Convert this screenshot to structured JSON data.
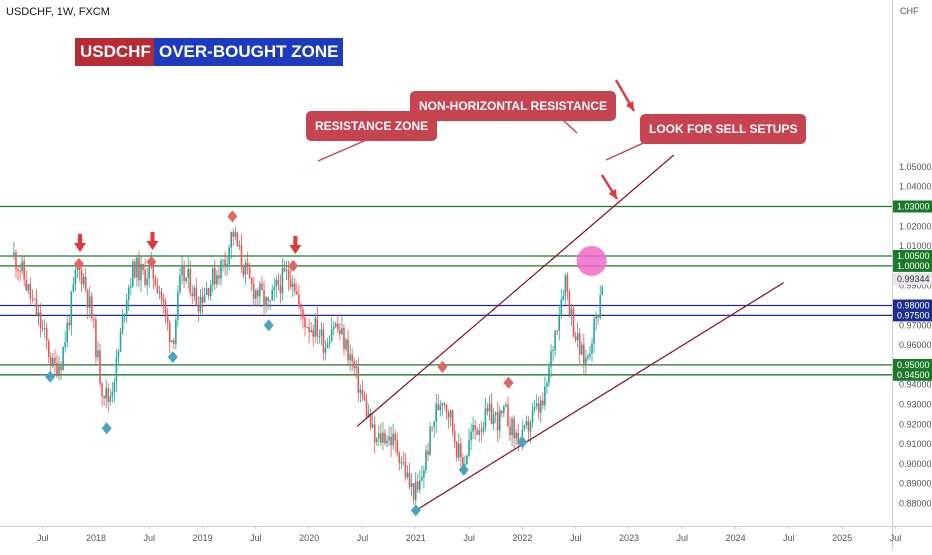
{
  "header": {
    "symbol": "USDCHF, 1W, FXCM",
    "title_left": "USDCHF",
    "title_right": "OVER-BOUGHT ZONE"
  },
  "annotations": {
    "resistance_zone": "RESISTANCE ZONE",
    "non_horizontal": "NON-HORIZONTAL RESISTANCE",
    "sell_setups": "LOOK FOR SELL SETUPS"
  },
  "colors": {
    "up": "#26a69a",
    "down": "#ef5350",
    "green_level": "#1b7a2a",
    "blue_level": "#1f2e8c",
    "channel": "#8b1a2b",
    "arrow": "#e03838",
    "top_marker": "#e06666",
    "bottom_marker": "#4aa3c2",
    "highlight": "#f06acb"
  },
  "chart_data": {
    "type": "candlestick",
    "symbol": "USDCHF",
    "timeframe": "1W",
    "source": "FXCM",
    "yaxis_unit": "CHF",
    "ylim": [
      0.874,
      1.058
    ],
    "xlim": [
      2017.23,
      2025.95
    ],
    "y_ticks": [
      "0.88000",
      "0.89000",
      "0.90000",
      "0.91000",
      "0.92000",
      "0.93000",
      "0.94000",
      "0.95000",
      "0.96000",
      "0.97000",
      "0.98000",
      "0.99000",
      "1.00000",
      "1.01000",
      "1.02000",
      "1.03000",
      "1.04000",
      "1.05000"
    ],
    "x_ticks": [
      {
        "label": "Jul",
        "x": 2017.5
      },
      {
        "label": "2018",
        "x": 2018.0
      },
      {
        "label": "Jul",
        "x": 2018.5
      },
      {
        "label": "2019",
        "x": 2019.0
      },
      {
        "label": "Jul",
        "x": 2019.5
      },
      {
        "label": "2020",
        "x": 2020.0
      },
      {
        "label": "Jul",
        "x": 2020.5
      },
      {
        "label": "2021",
        "x": 2021.0
      },
      {
        "label": "Jul",
        "x": 2021.5
      },
      {
        "label": "2022",
        "x": 2022.0
      },
      {
        "label": "Jul",
        "x": 2022.5
      },
      {
        "label": "2023",
        "x": 2023.0
      },
      {
        "label": "Jul",
        "x": 2023.5
      },
      {
        "label": "2024",
        "x": 2024.0
      },
      {
        "label": "Jul",
        "x": 2024.5
      },
      {
        "label": "2025",
        "x": 2025.0
      },
      {
        "label": "Jul",
        "x": 2025.5
      }
    ],
    "price_path": [
      [
        2017.23,
        1.005
      ],
      [
        2017.3,
        0.998
      ],
      [
        2017.38,
        0.985
      ],
      [
        2017.45,
        0.975
      ],
      [
        2017.53,
        0.962
      ],
      [
        2017.6,
        0.948
      ],
      [
        2017.67,
        0.952
      ],
      [
        2017.75,
        0.975
      ],
      [
        2017.82,
        0.998
      ],
      [
        2017.88,
        0.995
      ],
      [
        2017.96,
        0.975
      ],
      [
        2018.05,
        0.94
      ],
      [
        2018.12,
        0.932
      ],
      [
        2018.2,
        0.952
      ],
      [
        2018.28,
        0.985
      ],
      [
        2018.36,
        1.0
      ],
      [
        2018.44,
        0.995
      ],
      [
        2018.52,
        0.998
      ],
      [
        2018.6,
        0.988
      ],
      [
        2018.66,
        0.972
      ],
      [
        2018.72,
        0.962
      ],
      [
        2018.8,
        0.995
      ],
      [
        2018.88,
        0.992
      ],
      [
        2018.95,
        0.982
      ],
      [
        2019.05,
        0.99
      ],
      [
        2019.15,
        0.998
      ],
      [
        2019.22,
        1.004
      ],
      [
        2019.28,
        1.018
      ],
      [
        2019.35,
        1.005
      ],
      [
        2019.45,
        0.99
      ],
      [
        2019.55,
        0.985
      ],
      [
        2019.62,
        0.978
      ],
      [
        2019.7,
        0.99
      ],
      [
        2019.78,
        0.995
      ],
      [
        2019.85,
        0.995
      ],
      [
        2019.92,
        0.975
      ],
      [
        2020.0,
        0.97
      ],
      [
        2020.08,
        0.968
      ],
      [
        2020.15,
        0.96
      ],
      [
        2020.22,
        0.972
      ],
      [
        2020.3,
        0.965
      ],
      [
        2020.38,
        0.955
      ],
      [
        2020.45,
        0.942
      ],
      [
        2020.55,
        0.925
      ],
      [
        2020.62,
        0.91
      ],
      [
        2020.7,
        0.915
      ],
      [
        2020.78,
        0.912
      ],
      [
        2020.85,
        0.905
      ],
      [
        2020.95,
        0.888
      ],
      [
        2021.02,
        0.885
      ],
      [
        2021.1,
        0.905
      ],
      [
        2021.18,
        0.925
      ],
      [
        2021.25,
        0.935
      ],
      [
        2021.32,
        0.925
      ],
      [
        2021.4,
        0.905
      ],
      [
        2021.45,
        0.9
      ],
      [
        2021.52,
        0.915
      ],
      [
        2021.6,
        0.92
      ],
      [
        2021.7,
        0.925
      ],
      [
        2021.78,
        0.922
      ],
      [
        2021.85,
        0.925
      ],
      [
        2021.92,
        0.915
      ],
      [
        2022.0,
        0.912
      ],
      [
        2022.1,
        0.925
      ],
      [
        2022.2,
        0.93
      ],
      [
        2022.3,
        0.965
      ],
      [
        2022.4,
        0.995
      ],
      [
        2022.45,
        0.978
      ],
      [
        2022.5,
        0.965
      ],
      [
        2022.55,
        0.955
      ],
      [
        2022.6,
        0.952
      ],
      [
        2022.65,
        0.965
      ],
      [
        2022.7,
        0.975
      ],
      [
        2022.75,
        0.993
      ]
    ],
    "horizontal_levels": [
      {
        "label": "1.03000",
        "value": 1.03,
        "color": "green"
      },
      {
        "label": "1.00500",
        "value": 1.005,
        "color": "green"
      },
      {
        "label": "1.00000",
        "value": 1.0,
        "color": "green"
      },
      {
        "label": "0.98000",
        "value": 0.98,
        "color": "blue"
      },
      {
        "label": "0.97500",
        "value": 0.975,
        "color": "blue"
      },
      {
        "label": "0.95000",
        "value": 0.95,
        "color": "green"
      },
      {
        "label": "0.94500",
        "value": 0.945,
        "color": "green"
      }
    ],
    "current_price": {
      "label": "0.99344",
      "value": 0.99344
    },
    "trendlines": [
      {
        "name": "channel-upper",
        "from": [
          2020.45,
          0.919
        ],
        "to": [
          2023.42,
          1.056
        ]
      },
      {
        "name": "channel-lower",
        "from": [
          2021.0,
          0.8765
        ],
        "to": [
          2024.45,
          0.9915
        ]
      }
    ],
    "top_markers": [
      {
        "x": 2017.84,
        "y": 1.001
      },
      {
        "x": 2018.52,
        "y": 1.002
      },
      {
        "x": 2019.28,
        "y": 1.025
      },
      {
        "x": 2019.85,
        "y": 1.0
      },
      {
        "x": 2021.25,
        "y": 0.949
      },
      {
        "x": 2021.87,
        "y": 0.941
      }
    ],
    "bottom_markers": [
      {
        "x": 2017.57,
        "y": 0.944
      },
      {
        "x": 2018.1,
        "y": 0.918
      },
      {
        "x": 2018.72,
        "y": 0.954
      },
      {
        "x": 2019.62,
        "y": 0.97
      },
      {
        "x": 2021.0,
        "y": 0.8765
      },
      {
        "x": 2021.45,
        "y": 0.897
      },
      {
        "x": 2022.0,
        "y": 0.911
      }
    ],
    "down_arrows": [
      {
        "x": 2017.85,
        "y": 1.006
      },
      {
        "x": 2018.53,
        "y": 1.007
      },
      {
        "x": 2019.87,
        "y": 1.005
      }
    ],
    "highlight_circle": {
      "x": 2022.65,
      "y": 1.0025
    }
  }
}
